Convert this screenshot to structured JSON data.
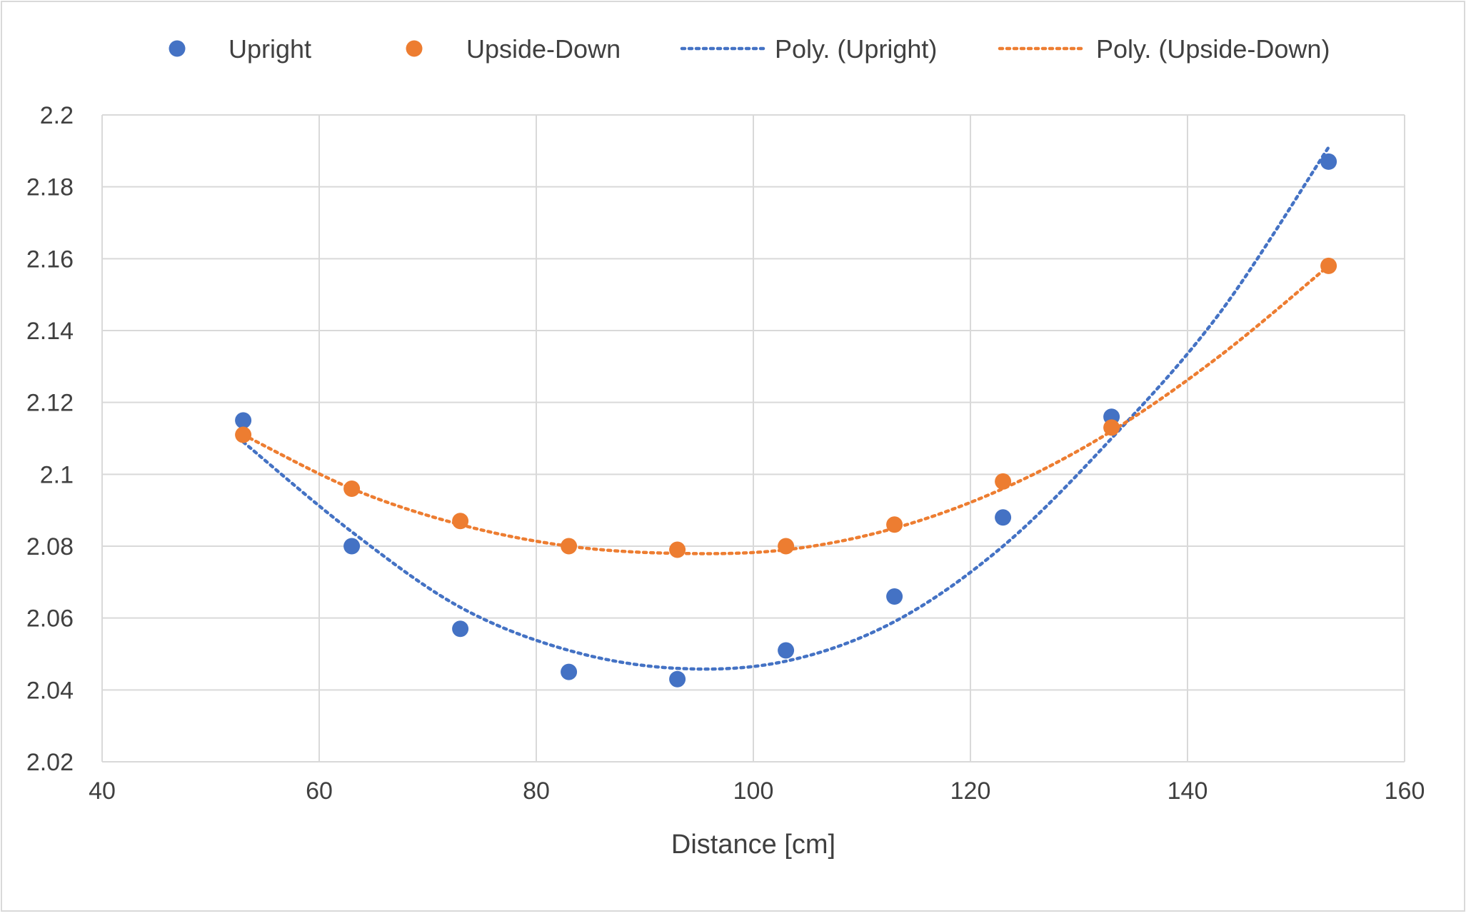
{
  "chart_data": {
    "type": "scatter",
    "title": "",
    "xlabel": "Distance [cm]",
    "ylabel": "",
    "xlim": [
      40,
      160
    ],
    "ylim": [
      2.02,
      2.2
    ],
    "xticks": [
      40,
      60,
      80,
      100,
      120,
      140,
      160
    ],
    "yticks": [
      2.02,
      2.04,
      2.06,
      2.08,
      2.1,
      2.12,
      2.14,
      2.16,
      2.18,
      2.2
    ],
    "ytick_labels": [
      "2.02",
      "2.04",
      "2.06",
      "2.08",
      "2.1",
      "2.12",
      "2.14",
      "2.16",
      "2.18",
      "2.2"
    ],
    "grid": true,
    "legend_position": "top",
    "series": [
      {
        "name": "Upright",
        "color": "#4472C4",
        "x": [
          53,
          63,
          73,
          83,
          93,
          103,
          113,
          123,
          133,
          153
        ],
        "y": [
          2.115,
          2.08,
          2.057,
          2.045,
          2.043,
          2.051,
          2.066,
          2.088,
          2.116,
          2.187
        ]
      },
      {
        "name": "Upside-Down",
        "color": "#ED7D31",
        "x": [
          53,
          63,
          73,
          83,
          93,
          103,
          113,
          123,
          133,
          153
        ],
        "y": [
          2.111,
          2.096,
          2.087,
          2.08,
          2.079,
          2.08,
          2.086,
          2.098,
          2.113,
          2.158
        ]
      }
    ],
    "trendlines": [
      {
        "name": "Poly. (Upright)",
        "color": "#4472C4",
        "style": "dotted",
        "series": "Upright",
        "x": [
          53,
          63,
          73,
          83,
          93,
          103,
          113,
          123,
          133,
          143,
          153
        ],
        "y": [
          2.109,
          2.084,
          2.063,
          2.051,
          2.046,
          2.048,
          2.059,
          2.08,
          2.11,
          2.145,
          2.191
        ]
      },
      {
        "name": "Poly. (Upside-Down)",
        "color": "#ED7D31",
        "style": "dotted",
        "series": "Upside-Down",
        "x": [
          53,
          63,
          73,
          83,
          93,
          103,
          113,
          123,
          133,
          143,
          153
        ],
        "y": [
          2.111,
          2.096,
          2.086,
          2.08,
          2.078,
          2.079,
          2.085,
          2.096,
          2.112,
          2.133,
          2.158
        ]
      }
    ]
  }
}
